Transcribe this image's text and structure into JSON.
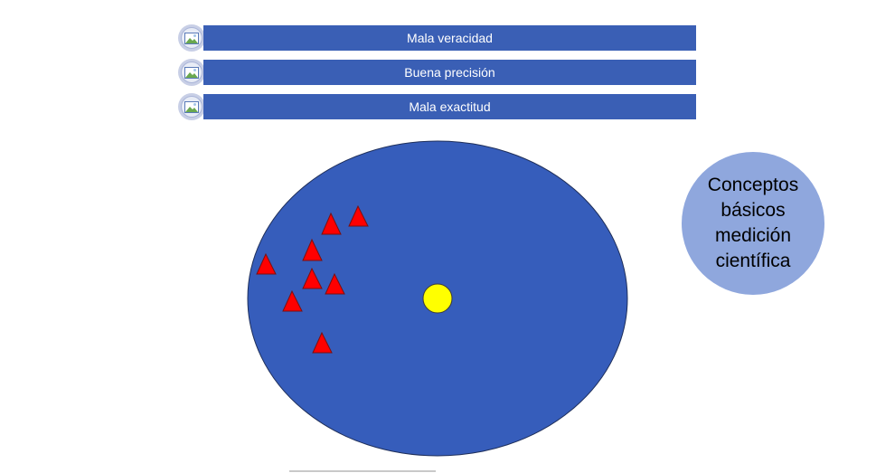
{
  "bars": [
    {
      "label": "Mala veracidad",
      "icon": "picture-icon"
    },
    {
      "label": "Buena precisión",
      "icon": "picture-icon"
    },
    {
      "label": "Mala exactitud",
      "icon": "picture-icon"
    }
  ],
  "concept": {
    "text": "Conceptos básicos medición científica"
  },
  "colors": {
    "bar": "#3a5fb5",
    "target": "#365dbb",
    "bullseye": "#ffff00",
    "marker": "#ff0000",
    "concept_circle": "#8fa7dd"
  },
  "diagram": {
    "target_shape": "ellipse",
    "center_marker": "yellow circle",
    "markers_shape": "triangle",
    "marker_count": 8
  }
}
